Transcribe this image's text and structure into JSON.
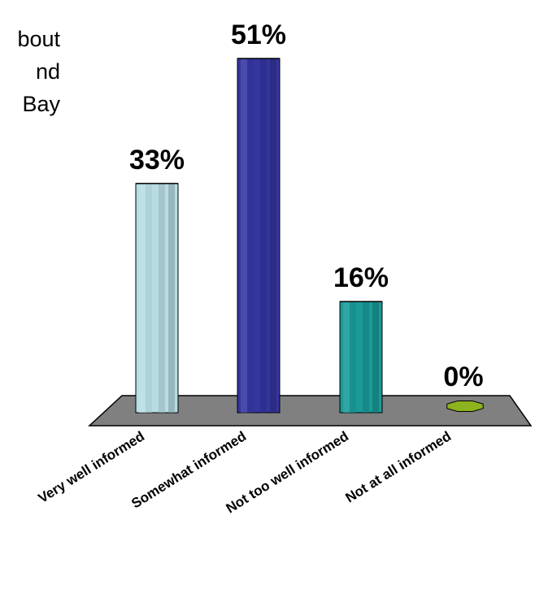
{
  "title_fragments": [
    "bout",
    "nd",
    "Bay"
  ],
  "chart_data": {
    "type": "bar",
    "categories": [
      "Very well informed",
      "Somewhat informed",
      "Not too well informed",
      "Not at all informed"
    ],
    "values": [
      33,
      51,
      16,
      0
    ],
    "data_labels": [
      "33%",
      "51%",
      "16%",
      "0%"
    ],
    "ylim": [
      0,
      51
    ],
    "colors": [
      "#b7dde3",
      "#3535a0",
      "#1a9a98",
      "#8db31e"
    ],
    "floor_color": "#808080",
    "grid": false,
    "legend": "none"
  }
}
